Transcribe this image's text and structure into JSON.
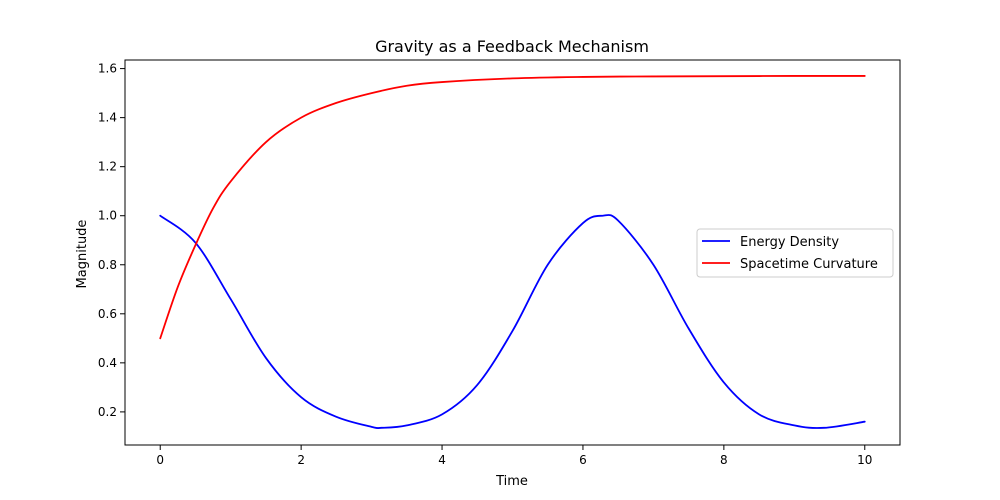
{
  "chart_data": {
    "type": "line",
    "title": "Gravity as a Feedback Mechanism",
    "xlabel": "Time",
    "ylabel": "Magnitude",
    "xlim": [
      -0.5,
      10.5
    ],
    "ylim": [
      0.065,
      1.635
    ],
    "xticks": [
      0,
      2,
      4,
      6,
      8,
      10
    ],
    "xtick_labels": [
      "0",
      "2",
      "4",
      "6",
      "8",
      "10"
    ],
    "yticks": [
      0.2,
      0.4,
      0.6,
      0.8,
      1.0,
      1.2,
      1.4,
      1.6
    ],
    "ytick_labels": [
      "0.2",
      "0.4",
      "0.6",
      "0.8",
      "1.0",
      "1.2",
      "1.4",
      "1.6"
    ],
    "grid": false,
    "legend": {
      "position": "center-right"
    },
    "series": [
      {
        "name": "Energy Density",
        "color": "#0000ff",
        "x": [
          0,
          0.5,
          1,
          1.5,
          2,
          2.5,
          3,
          3.14,
          3.5,
          4,
          4.5,
          5,
          5.5,
          6,
          6.28,
          6.5,
          7,
          7.5,
          8,
          8.5,
          9,
          9.42,
          10
        ],
        "y": [
          1.0,
          0.89,
          0.66,
          0.42,
          0.26,
          0.18,
          0.139,
          0.135,
          0.145,
          0.19,
          0.31,
          0.53,
          0.8,
          0.97,
          1.0,
          0.98,
          0.8,
          0.54,
          0.32,
          0.19,
          0.145,
          0.135,
          0.16
        ]
      },
      {
        "name": "Spacetime Curvature",
        "color": "#ff0000",
        "x": [
          0,
          0.25,
          0.5,
          0.75,
          1,
          1.5,
          2,
          2.5,
          3,
          3.5,
          4,
          5,
          6,
          7,
          8,
          9,
          10
        ],
        "y": [
          0.5,
          0.71,
          0.88,
          1.03,
          1.14,
          1.3,
          1.4,
          1.46,
          1.5,
          1.53,
          1.545,
          1.56,
          1.566,
          1.568,
          1.569,
          1.57,
          1.57
        ]
      }
    ]
  }
}
